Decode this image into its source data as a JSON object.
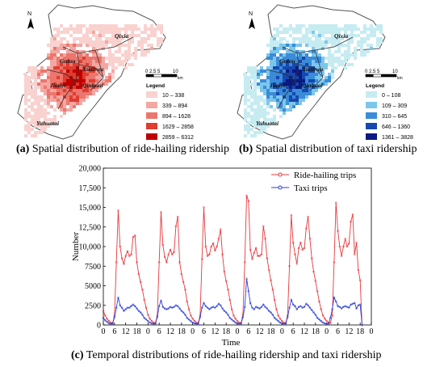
{
  "maps": [
    {
      "id": "a",
      "caption_label": "(a)",
      "caption_text": "Spatial distribution of ride-hailing ridership",
      "north": "N",
      "scale_label": "0 2.5 5",
      "scale_max": "10",
      "scale_unit": "km",
      "legend_title": "Legend",
      "legend": [
        {
          "label": "10 – 338",
          "color": "#f9d2d0"
        },
        {
          "label": "339 – 894",
          "color": "#f3a7a2"
        },
        {
          "label": "894 – 1628",
          "color": "#ec766d"
        },
        {
          "label": "1629 – 2858",
          "color": "#e03c31"
        },
        {
          "label": "2859 – 6312",
          "color": "#c00000"
        }
      ],
      "districts": [
        "Qixia",
        "Gulou",
        "Xuanwu",
        "Jianye",
        "Qinhuai",
        "Yuhuatai"
      ]
    },
    {
      "id": "b",
      "caption_label": "(b)",
      "caption_text": "Spatial distribution of taxi ridership",
      "north": "N",
      "scale_label": "0 2.5 5",
      "scale_max": "10",
      "scale_unit": "km",
      "legend_title": "Legend",
      "legend": [
        {
          "label": "0 – 108",
          "color": "#c6ecf2"
        },
        {
          "label": "109 – 309",
          "color": "#7cc6ec"
        },
        {
          "label": "310 – 645",
          "color": "#3a8bd8"
        },
        {
          "label": "646 – 1360",
          "color": "#1747b0"
        },
        {
          "label": "1361 – 3828",
          "color": "#0a1a80"
        }
      ],
      "districts": [
        "Qixia",
        "Gulou",
        "Xuanwu",
        "Jianye",
        "Qinhuai",
        "Yuhuatai"
      ]
    }
  ],
  "chart_caption_label": "(c)",
  "chart_caption_text": "Temporal distributions of ride-hailing ridership and taxi ridership",
  "chart_data": {
    "type": "line",
    "xlabel": "Time",
    "ylabel": "Number",
    "ylim": [
      0,
      20000
    ],
    "yticks": [
      "0",
      "2500",
      "5000",
      "7500",
      "10,000",
      "12,500",
      "15,000",
      "17,500",
      "20,000"
    ],
    "xticks": [
      "0",
      "6",
      "12",
      "18",
      "0",
      "6",
      "12",
      "18",
      "0",
      "6",
      "12",
      "18",
      "0",
      "6",
      "12",
      "18",
      "0",
      "6",
      "12",
      "18",
      "0",
      "6",
      "12",
      "18",
      "0"
    ],
    "xlim": [
      0,
      144
    ],
    "legend_position": "top-right",
    "series": [
      {
        "name": "Ride-hailing trips",
        "color": "#e8383d",
        "values": [
          1800,
          1200,
          800,
          500,
          300,
          250,
          1200,
          8000,
          14600,
          10000,
          8500,
          7800,
          8800,
          9400,
          8800,
          9000,
          11200,
          11400,
          8000,
          6500,
          5500,
          4500,
          3200,
          2200,
          1300,
          800,
          500,
          300,
          250,
          1200,
          8000,
          14400,
          10200,
          8700,
          8000,
          9000,
          9600,
          9000,
          9300,
          12600,
          13800,
          8000,
          6500,
          5500,
          4500,
          3000,
          2000,
          1200,
          800,
          500,
          300,
          250,
          1200,
          8400,
          15000,
          10000,
          8800,
          9000,
          10000,
          10400,
          9500,
          10000,
          11000,
          12200,
          9000,
          6800,
          5600,
          4500,
          3200,
          2000,
          1200,
          800,
          500,
          300,
          250,
          1300,
          8000,
          16500,
          15800,
          9600,
          8400,
          9200,
          9800,
          8800,
          8800,
          9000,
          12600,
          11000,
          8500,
          7000,
          5700,
          4500,
          3200,
          2000,
          1200,
          800,
          500,
          300,
          250,
          1200,
          7500,
          14000,
          10500,
          9000,
          7800,
          9800,
          10500,
          9600,
          9800,
          12300,
          13800,
          11000,
          8500,
          6800,
          5600,
          4300,
          3000,
          2000,
          1200,
          800,
          500,
          300,
          250,
          1200,
          8000,
          15600,
          12000,
          10000,
          8800,
          10000,
          11000,
          10000,
          10400,
          13200,
          14100,
          9000,
          10500,
          7000,
          5700,
          0
        ]
      },
      {
        "name": "Taxi trips",
        "color": "#2a3fd8",
        "values": [
          900,
          600,
          400,
          200,
          150,
          150,
          1000,
          2200,
          3500,
          2500,
          2200,
          1800,
          2000,
          2200,
          2200,
          2400,
          2600,
          2400,
          2100,
          1800,
          1600,
          1300,
          900,
          700,
          500,
          300,
          200,
          150,
          150,
          1000,
          2400,
          3100,
          2300,
          2100,
          2000,
          2100,
          2300,
          2200,
          2300,
          2500,
          2400,
          2100,
          1800,
          1600,
          1300,
          900,
          700,
          500,
          300,
          200,
          150,
          150,
          1000,
          2200,
          2800,
          2400,
          2200,
          2000,
          2200,
          2300,
          2200,
          2400,
          2700,
          2500,
          2100,
          1800,
          1600,
          1300,
          900,
          700,
          500,
          300,
          200,
          150,
          150,
          1000,
          2300,
          5900,
          4300,
          2800,
          2200,
          2000,
          2300,
          2200,
          2100,
          2300,
          2600,
          2300,
          2100,
          1800,
          1600,
          1300,
          900,
          700,
          500,
          300,
          200,
          150,
          150,
          1000,
          2200,
          3200,
          2600,
          2400,
          2000,
          2300,
          2400,
          2200,
          2300,
          2700,
          2500,
          2200,
          1900,
          1600,
          1300,
          900,
          700,
          500,
          300,
          200,
          150,
          150,
          900,
          2000,
          3500,
          3000,
          2400,
          2300,
          2100,
          2300,
          2400,
          2300,
          2200,
          2600,
          2700,
          2800,
          2100,
          2500,
          2600,
          0
        ]
      }
    ]
  }
}
